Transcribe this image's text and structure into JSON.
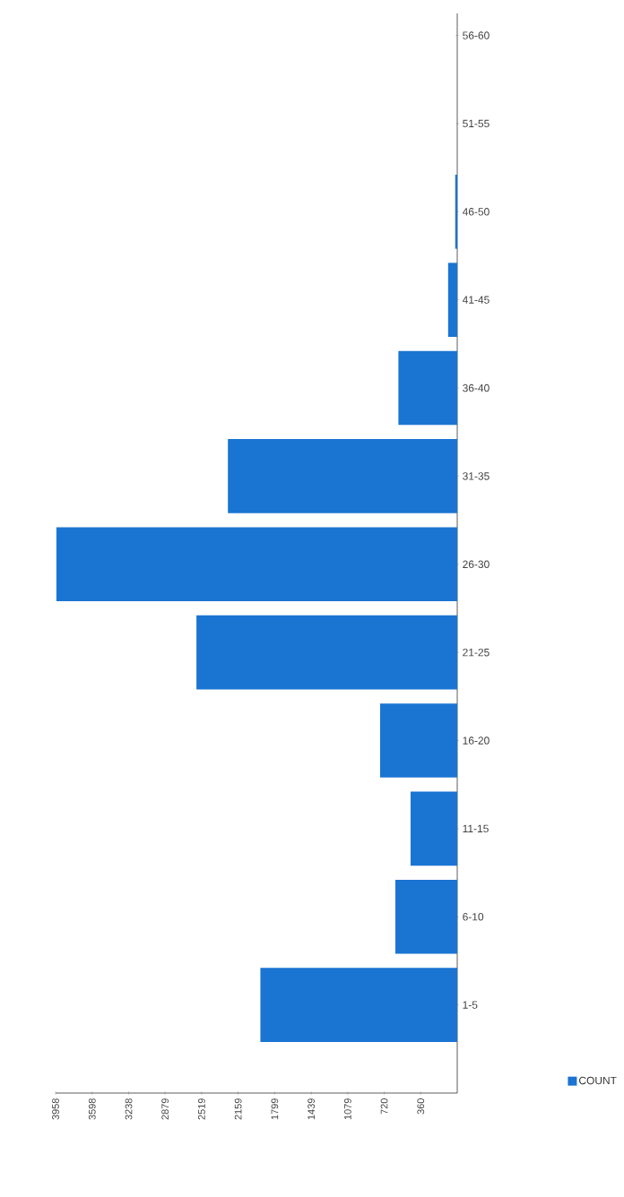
{
  "chart_data": {
    "type": "bar",
    "orientation": "horizontal",
    "categories": [
      "56-60",
      "51-55",
      "46-50",
      "41-45",
      "36-40",
      "31-35",
      "26-30",
      "21-25",
      "16-20",
      "11-15",
      "6-10",
      "1-5"
    ],
    "series": [
      {
        "name": "COUNT",
        "color": "#1a74d2",
        "values": [
          0,
          0,
          20,
          90,
          580,
          2260,
          3950,
          2570,
          760,
          460,
          610,
          1940
        ]
      }
    ],
    "xlim": [
      3958,
      0
    ],
    "xticks": [
      3958,
      3598,
      3238,
      2879,
      2519,
      2159,
      1799,
      1439,
      1079,
      720,
      360
    ],
    "legend": "bottom right"
  }
}
